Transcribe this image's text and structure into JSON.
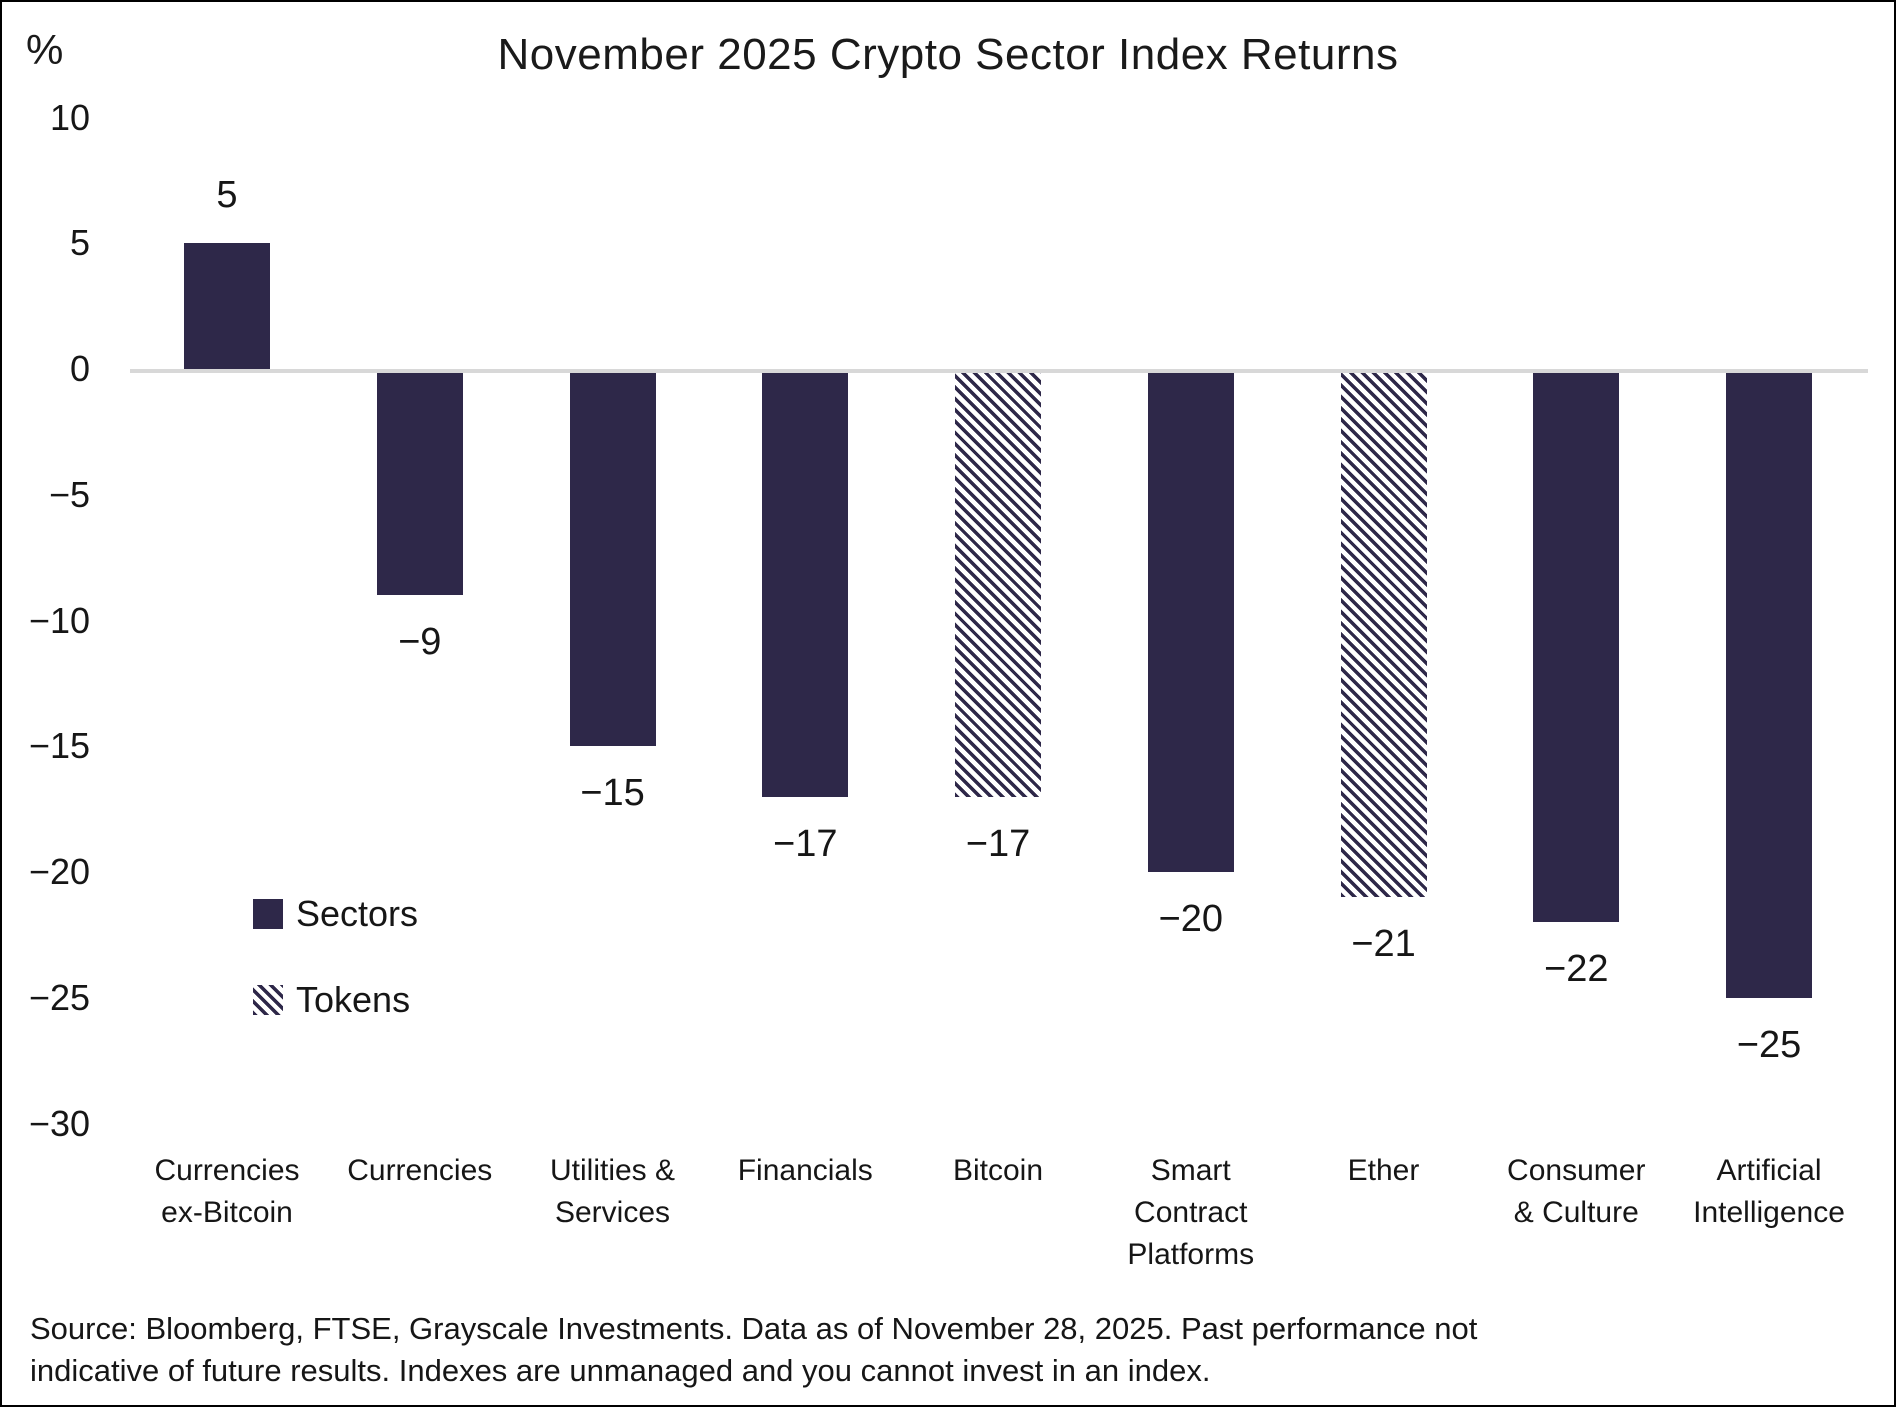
{
  "title": "November 2025 Crypto Sector Index Returns",
  "chart_data": {
    "type": "bar",
    "title": "November 2025 Crypto Sector Index Returns",
    "y_unit_label": "%",
    "ylim": [
      -30,
      10
    ],
    "grid": "zero-baseline-only",
    "legend_position": "inside-left",
    "yticks": [
      10,
      5,
      0,
      -5,
      -10,
      -15,
      -20,
      -25,
      -30
    ],
    "ytick_labels": [
      "10",
      "5",
      "0",
      "−5",
      "−10",
      "−15",
      "−20",
      "−25",
      "−30"
    ],
    "categories": [
      {
        "label": "Currencies ex-Bitcoin",
        "lines": [
          "Currencies",
          "ex-Bitcoin"
        ]
      },
      {
        "label": "Currencies",
        "lines": [
          "Currencies"
        ]
      },
      {
        "label": "Utilities & Services",
        "lines": [
          "Utilities &",
          "Services"
        ]
      },
      {
        "label": "Financials",
        "lines": [
          "Financials"
        ]
      },
      {
        "label": "Bitcoin",
        "lines": [
          "Bitcoin"
        ]
      },
      {
        "label": "Smart Contract Platforms",
        "lines": [
          "Smart",
          "Contract",
          "Platforms"
        ]
      },
      {
        "label": "Ether",
        "lines": [
          "Ether"
        ]
      },
      {
        "label": "Consumer & Culture",
        "lines": [
          "Consumer",
          "& Culture"
        ]
      },
      {
        "label": "Artificial Intelligence",
        "lines": [
          "Artificial",
          "Intelligence"
        ]
      }
    ],
    "values": [
      5,
      -9,
      -15,
      -17,
      -17,
      -20,
      -21,
      -22,
      -25
    ],
    "value_labels": [
      "5",
      "−9",
      "−15",
      "−17",
      "−17",
      "−20",
      "−21",
      "−22",
      "−25"
    ],
    "bar_styles": [
      "solid",
      "solid",
      "solid",
      "solid",
      "hatched",
      "solid",
      "hatched",
      "solid",
      "solid"
    ],
    "legend": [
      {
        "label": "Sectors",
        "style": "solid"
      },
      {
        "label": "Tokens",
        "style": "hatched"
      }
    ],
    "colors": {
      "bar": "#2e2849",
      "gridline": "#d8d8d8",
      "text": "#161616",
      "background": "#ffffff"
    }
  },
  "footer": {
    "lines": [
      "Source: Bloomberg, FTSE, Grayscale Investments. Data as of November 28, 2025. Past performance not",
      "indicative of future results. Indexes are unmanaged and you cannot invest in an index."
    ]
  }
}
